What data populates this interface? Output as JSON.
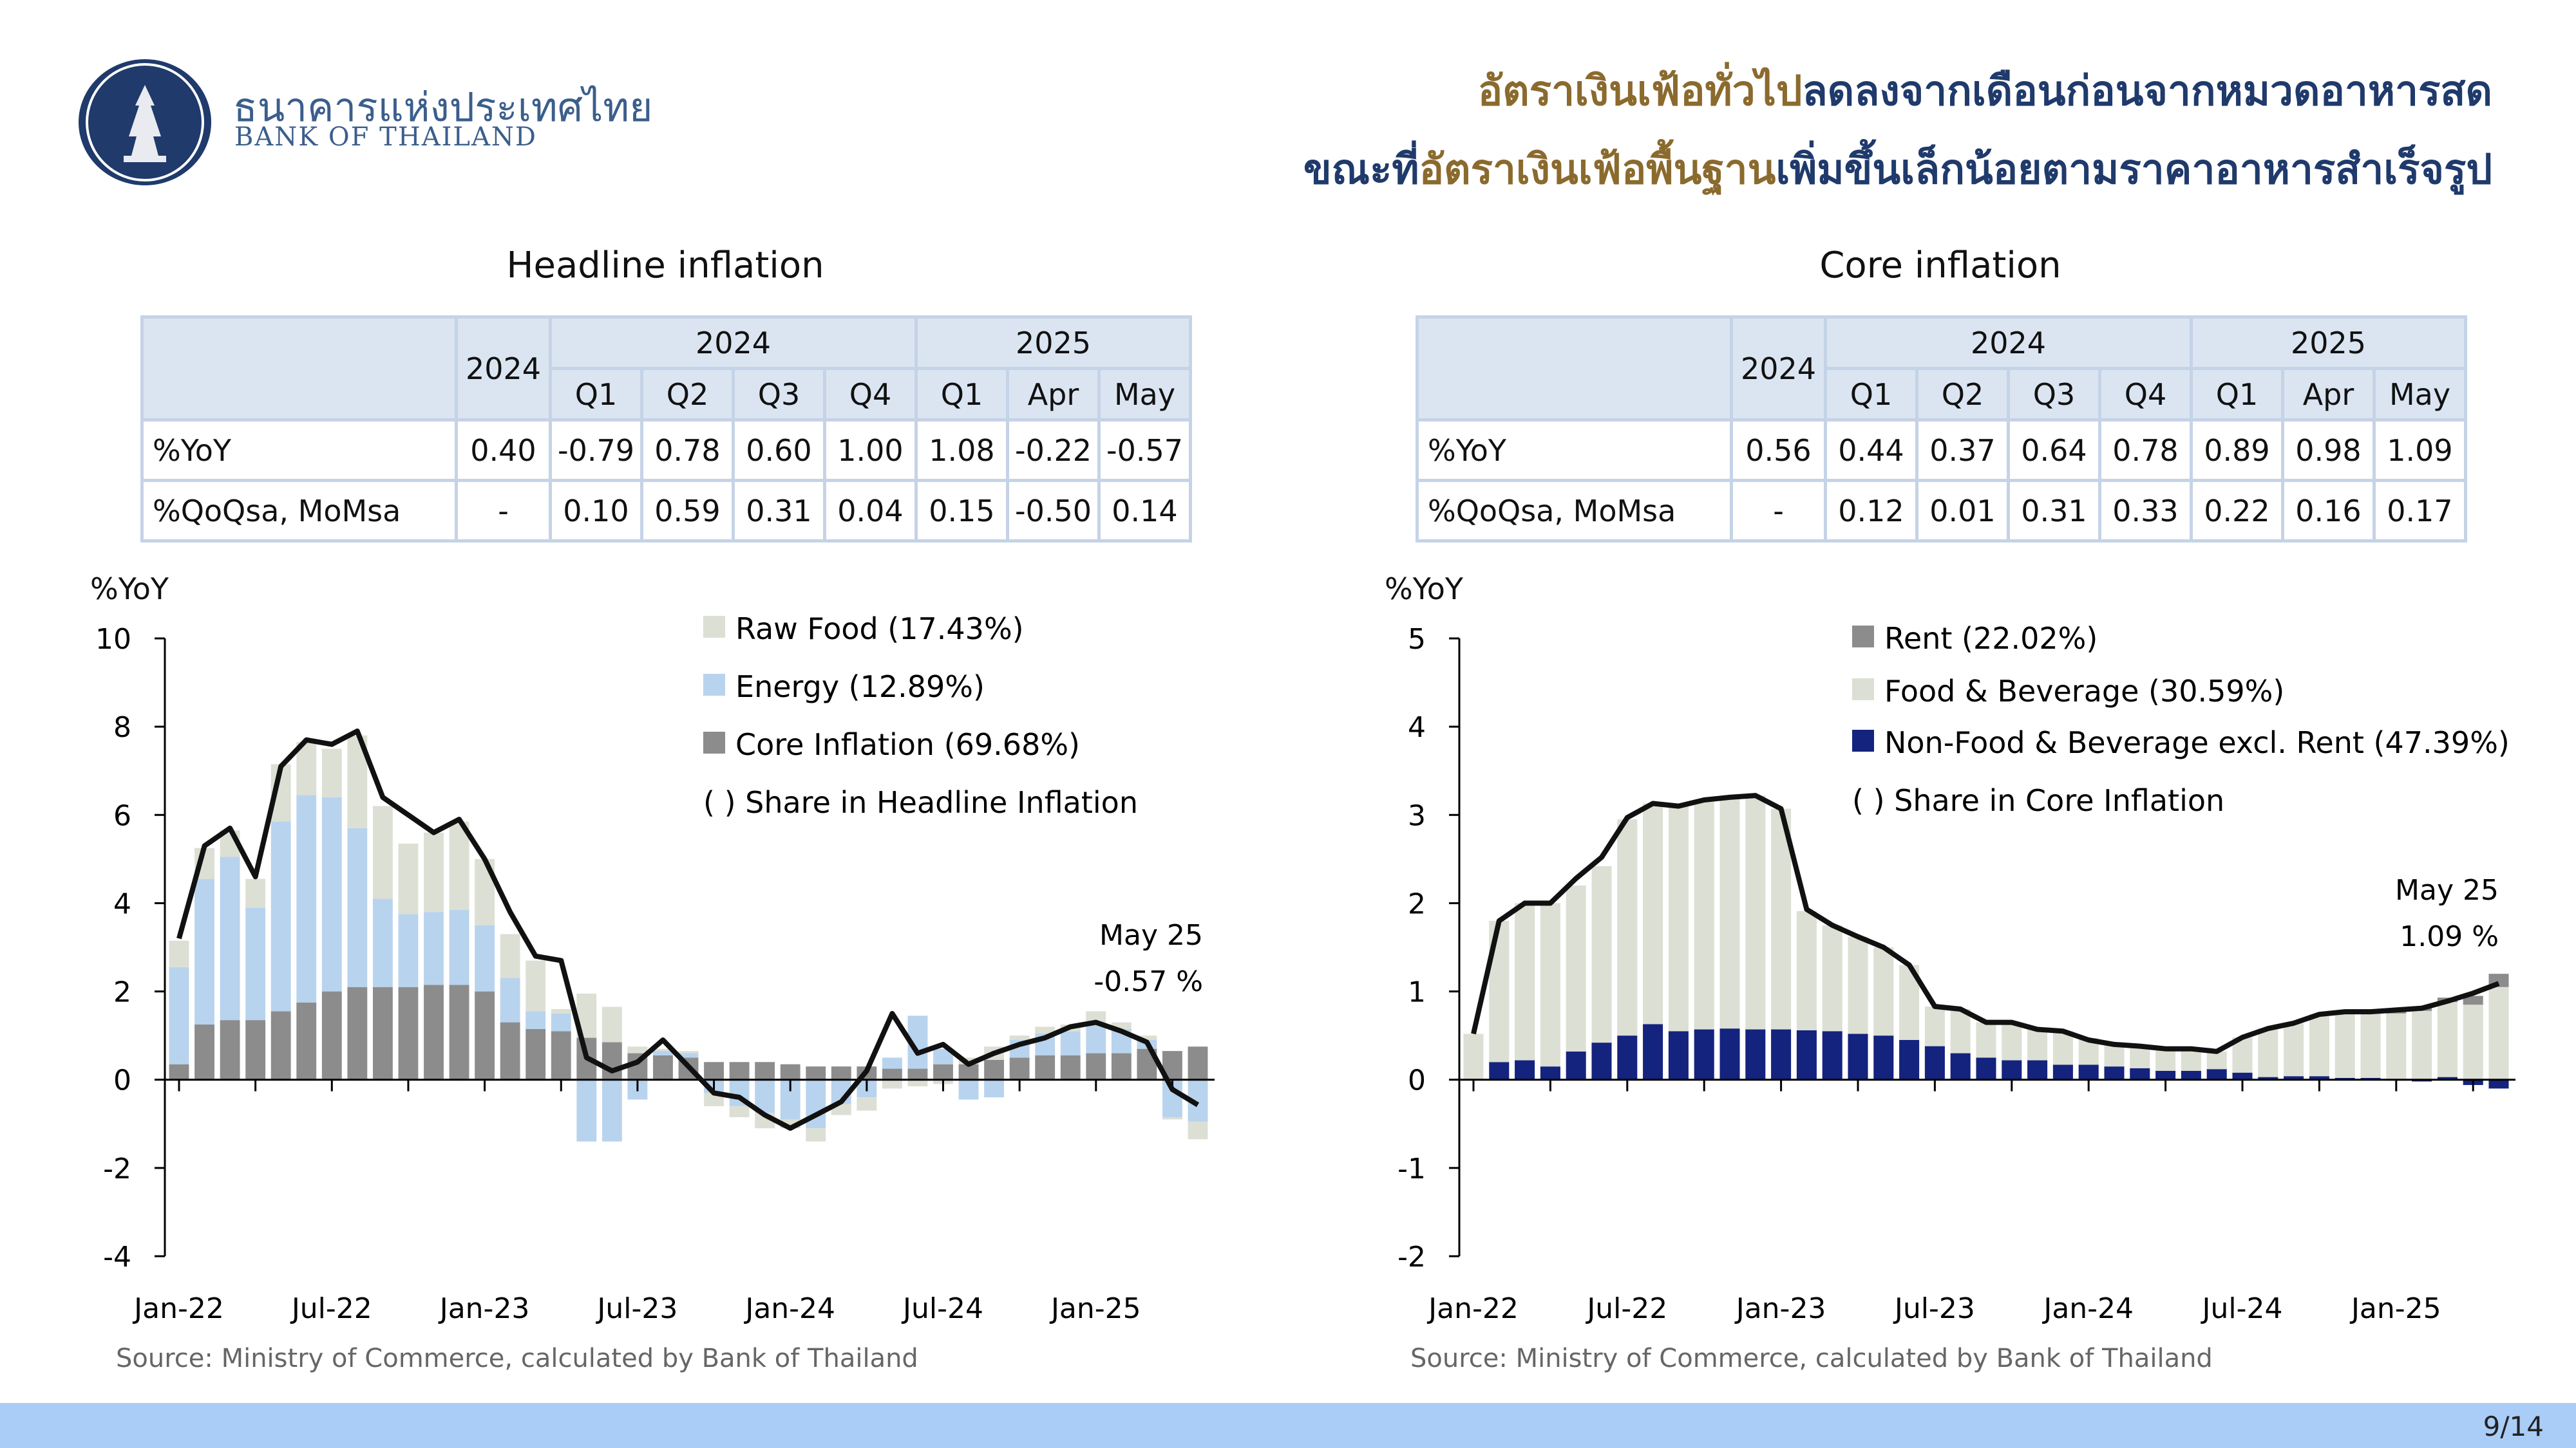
{
  "header": {
    "logo_thai": "ธนาคารแห่งประเทศไทย",
    "logo_en": "BANK OF THAILAND",
    "headline_line1": [
      {
        "text": "อัตราเงินเฟ้อทั่วไป",
        "color": "#8b6a2e"
      },
      {
        "text": "ลดลงจากเดือนก่อนจากหมวดอาหารสด",
        "color": "#1f3a6b"
      }
    ],
    "headline_line2": [
      {
        "text": "ขณะที่",
        "color": "#1f3a6b"
      },
      {
        "text": "อัตราเงินเฟ้อพื้นฐาน",
        "color": "#8b6a2e"
      },
      {
        "text": "เพิ่มขึ้นเล็กน้อยตามราคาอาหารสำเร็จรูป",
        "color": "#1f3a6b"
      }
    ]
  },
  "headline_panel": {
    "title": "Headline inflation",
    "table": {
      "col_2024": "2024",
      "year_groups": [
        "2024",
        "2025"
      ],
      "periods": [
        "Q1",
        "Q2",
        "Q3",
        "Q4",
        "Q1",
        "Apr",
        "May"
      ],
      "rows": [
        {
          "label": "%YoY",
          "values": [
            "0.40",
            "-0.79",
            "0.78",
            "0.60",
            "1.00",
            "1.08",
            "-0.22",
            "-0.57"
          ]
        },
        {
          "label": "%QoQsa, MoMsa",
          "values": [
            "-",
            "0.10",
            "0.59",
            "0.31",
            "0.04",
            "0.15",
            "-0.50",
            "0.14"
          ]
        }
      ]
    },
    "source": "Source: Ministry of Commerce, calculated by Bank of Thailand"
  },
  "core_panel": {
    "title": "Core inflation",
    "table": {
      "col_2024": "2024",
      "year_groups": [
        "2024",
        "2025"
      ],
      "periods": [
        "Q1",
        "Q2",
        "Q3",
        "Q4",
        "Q1",
        "Apr",
        "May"
      ],
      "rows": [
        {
          "label": "%YoY",
          "values": [
            "0.56",
            "0.44",
            "0.37",
            "0.64",
            "0.78",
            "0.89",
            "0.98",
            "1.09"
          ]
        },
        {
          "label": "%QoQsa, MoMsa",
          "values": [
            "-",
            "0.12",
            "0.01",
            "0.31",
            "0.33",
            "0.22",
            "0.16",
            "0.17"
          ]
        }
      ]
    },
    "source": "Source: Ministry of Commerce, calculated by Bank of Thailand"
  },
  "page_number": "9/14",
  "chart_data": [
    {
      "type": "bar",
      "stacked": true,
      "ylabel": "%YoY",
      "ylim": [
        -4,
        10
      ],
      "yticks": [
        -4,
        -2,
        0,
        2,
        4,
        6,
        8,
        10
      ],
      "x_tick_labels": [
        "Jan-22",
        "Jul-22",
        "Jan-23",
        "Jul-23",
        "Jan-24",
        "Jul-24",
        "Jan-25"
      ],
      "x": [
        "Jan-22",
        "Feb-22",
        "Mar-22",
        "Apr-22",
        "May-22",
        "Jun-22",
        "Jul-22",
        "Aug-22",
        "Sep-22",
        "Oct-22",
        "Nov-22",
        "Dec-22",
        "Jan-23",
        "Feb-23",
        "Mar-23",
        "Apr-23",
        "May-23",
        "Jun-23",
        "Jul-23",
        "Aug-23",
        "Sep-23",
        "Oct-23",
        "Nov-23",
        "Dec-23",
        "Jan-24",
        "Feb-24",
        "Mar-24",
        "Apr-24",
        "May-24",
        "Jun-24",
        "Jul-24",
        "Aug-24",
        "Sep-24",
        "Oct-24",
        "Nov-24",
        "Dec-24",
        "Jan-25",
        "Feb-25",
        "Mar-25",
        "Apr-25",
        "May-25"
      ],
      "series": [
        {
          "name": "Core Inflation (69.68%)",
          "color": "#8c8c8c",
          "values": [
            0.35,
            1.25,
            1.35,
            1.35,
            1.55,
            1.75,
            2.0,
            2.1,
            2.1,
            2.1,
            2.15,
            2.15,
            2.0,
            1.3,
            1.15,
            1.1,
            0.95,
            0.85,
            0.6,
            0.55,
            0.5,
            0.4,
            0.4,
            0.4,
            0.35,
            0.3,
            0.3,
            0.3,
            0.25,
            0.25,
            0.35,
            0.35,
            0.45,
            0.5,
            0.55,
            0.55,
            0.6,
            0.6,
            0.7,
            0.65,
            0.75
          ]
        },
        {
          "name": "Energy (12.89%)",
          "color": "#b8d3ee",
          "values": [
            2.2,
            3.3,
            3.7,
            2.55,
            4.3,
            4.7,
            4.4,
            3.6,
            2.0,
            1.65,
            1.65,
            1.7,
            1.5,
            1.0,
            0.4,
            0.4,
            -1.4,
            -1.4,
            -0.45,
            0.1,
            0.1,
            -0.3,
            -0.6,
            -0.75,
            -0.9,
            -1.1,
            -0.55,
            -0.4,
            0.25,
            1.2,
            0.35,
            -0.45,
            -0.4,
            0.4,
            0.5,
            0.55,
            0.65,
            0.55,
            0.2,
            -0.85,
            -0.95
          ]
        },
        {
          "name": "Raw Food (17.43%)",
          "color": "#dcdfd3",
          "values": [
            0.6,
            0.7,
            0.6,
            0.65,
            1.3,
            1.2,
            1.1,
            2.1,
            2.1,
            1.6,
            1.8,
            2.0,
            1.5,
            1.0,
            1.15,
            0.1,
            1.0,
            0.8,
            0.15,
            0.05,
            0.05,
            -0.3,
            -0.25,
            -0.35,
            -0.2,
            -0.3,
            -0.25,
            -0.3,
            -0.2,
            -0.15,
            -0.1,
            0.15,
            0.3,
            0.1,
            0.15,
            0.15,
            0.3,
            0.15,
            0.1,
            -0.05,
            -0.4
          ]
        }
      ],
      "line": {
        "name": "Headline",
        "color": "#111111",
        "values": [
          3.2,
          5.3,
          5.7,
          4.6,
          7.1,
          7.7,
          7.6,
          7.9,
          6.4,
          6.0,
          5.6,
          5.9,
          5.0,
          3.8,
          2.8,
          2.7,
          0.5,
          0.2,
          0.4,
          0.9,
          0.3,
          -0.3,
          -0.4,
          -0.8,
          -1.1,
          -0.8,
          -0.5,
          0.2,
          1.5,
          0.6,
          0.8,
          0.35,
          0.6,
          0.8,
          0.95,
          1.2,
          1.3,
          1.1,
          0.85,
          -0.22,
          -0.57
        ]
      },
      "legend": [
        "Raw Food (17.43%)",
        "Energy (12.89%)",
        "Core Inflation (69.68%)",
        "( ) Share in Headline Inflation"
      ],
      "annotation": {
        "line1": "May 25",
        "line2": "-0.57 %"
      }
    },
    {
      "type": "bar",
      "stacked": true,
      "ylabel": "%YoY",
      "ylim": [
        -2,
        5
      ],
      "yticks": [
        -2,
        -1,
        0,
        1,
        2,
        3,
        4,
        5
      ],
      "x_tick_labels": [
        "Jan-22",
        "Jul-22",
        "Jan-23",
        "Jul-23",
        "Jan-24",
        "Jul-24",
        "Jan-25"
      ],
      "x": [
        "Jan-22",
        "Feb-22",
        "Mar-22",
        "Apr-22",
        "May-22",
        "Jun-22",
        "Jul-22",
        "Aug-22",
        "Sep-22",
        "Oct-22",
        "Nov-22",
        "Dec-22",
        "Jan-23",
        "Feb-23",
        "Mar-23",
        "Apr-23",
        "May-23",
        "Jun-23",
        "Jul-23",
        "Aug-23",
        "Sep-23",
        "Oct-23",
        "Nov-23",
        "Dec-23",
        "Jan-24",
        "Feb-24",
        "Mar-24",
        "Apr-24",
        "May-24",
        "Jun-24",
        "Jul-24",
        "Aug-24",
        "Sep-24",
        "Oct-24",
        "Nov-24",
        "Dec-24",
        "Jan-25",
        "Feb-25",
        "Mar-25",
        "Apr-25",
        "May-25"
      ],
      "series": [
        {
          "name": "Non-Food & Beverage excl. Rent (47.39%)",
          "color": "#14237e",
          "values": [
            0.0,
            0.2,
            0.22,
            0.15,
            0.32,
            0.42,
            0.5,
            0.63,
            0.55,
            0.57,
            0.58,
            0.57,
            0.57,
            0.56,
            0.55,
            0.52,
            0.5,
            0.45,
            0.38,
            0.3,
            0.25,
            0.22,
            0.22,
            0.17,
            0.17,
            0.15,
            0.13,
            0.1,
            0.1,
            0.12,
            0.08,
            0.03,
            0.04,
            0.04,
            0.02,
            0.02,
            -0.01,
            -0.02,
            0.03,
            -0.06,
            -0.1
          ]
        },
        {
          "name": "Food & Beverage (30.59%)",
          "color": "#dcdfd3",
          "values": [
            0.52,
            1.6,
            1.78,
            1.85,
            1.88,
            2.0,
            2.45,
            2.5,
            2.55,
            2.6,
            2.62,
            2.65,
            2.5,
            1.35,
            1.2,
            1.1,
            1.0,
            0.85,
            0.45,
            0.5,
            0.4,
            0.43,
            0.35,
            0.38,
            0.3,
            0.25,
            0.25,
            0.25,
            0.25,
            0.2,
            0.4,
            0.55,
            0.6,
            0.7,
            0.75,
            0.75,
            0.75,
            0.78,
            0.85,
            0.85,
            1.05
          ]
        },
        {
          "name": "Rent (22.02%)",
          "color": "#8c8c8c",
          "values": [
            0.0,
            0.0,
            0.0,
            0.0,
            0.0,
            0.0,
            0.0,
            0.0,
            0.0,
            0.0,
            0.0,
            0.0,
            0.0,
            0.0,
            0.0,
            0.0,
            0.0,
            0.0,
            0.0,
            0.0,
            0.0,
            0.0,
            0.0,
            0.0,
            0.0,
            0.0,
            0.0,
            0.0,
            0.0,
            0.0,
            0.0,
            0.0,
            0.0,
            0.0,
            0.0,
            0.0,
            0.05,
            0.05,
            0.05,
            0.1,
            0.15
          ]
        }
      ],
      "line": {
        "name": "Core",
        "color": "#111111",
        "values": [
          0.52,
          1.8,
          2.0,
          2.0,
          2.28,
          2.52,
          2.97,
          3.13,
          3.1,
          3.17,
          3.2,
          3.22,
          3.07,
          1.93,
          1.75,
          1.62,
          1.5,
          1.3,
          0.83,
          0.8,
          0.65,
          0.65,
          0.57,
          0.55,
          0.45,
          0.4,
          0.38,
          0.35,
          0.35,
          0.32,
          0.48,
          0.58,
          0.64,
          0.74,
          0.77,
          0.77,
          0.79,
          0.81,
          0.89,
          0.98,
          1.09
        ]
      },
      "legend": [
        "Rent (22.02%)",
        "Food & Beverage (30.59%)",
        "Non-Food & Beverage excl. Rent (47.39%)",
        "( ) Share in Core Inflation"
      ],
      "annotation": {
        "line1": "May 25",
        "line2": "1.09 %"
      }
    }
  ]
}
